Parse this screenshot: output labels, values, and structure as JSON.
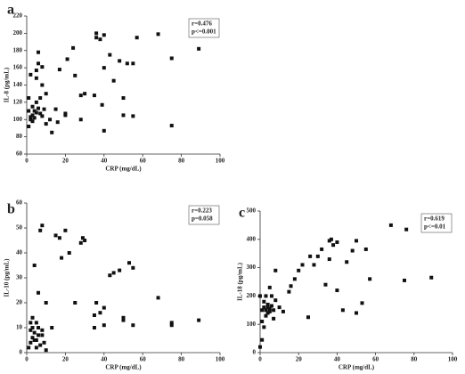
{
  "chart_data": [
    {
      "type": "scatter",
      "panel_label": "a",
      "x_label": "CRP (mg/dL)",
      "y_label": "IL-8 (pg/mL)",
      "annotations": [
        "r=0.476",
        "p<=0.001"
      ],
      "color": "#111111",
      "xlim": [
        0,
        100
      ],
      "xticks": [
        0,
        20,
        40,
        60,
        80,
        100
      ],
      "ylim": [
        60,
        220
      ],
      "yticks": [
        60,
        80,
        100,
        120,
        140,
        160,
        180,
        200,
        220
      ],
      "x": [
        89,
        75,
        75,
        68,
        57,
        55,
        55,
        52,
        50,
        50,
        48,
        45,
        43,
        40,
        40,
        40,
        39,
        38,
        36,
        36,
        35,
        30,
        28,
        28,
        25,
        24,
        21,
        20,
        20,
        17,
        16,
        15,
        13,
        12,
        10,
        10,
        8,
        8,
        7,
        6,
        6,
        5,
        5,
        5,
        4,
        3,
        2,
        2,
        1,
        1,
        1,
        3,
        4,
        5,
        6,
        7,
        8,
        9,
        3,
        2
      ],
      "values": [
        182,
        171,
        93,
        199,
        195,
        165,
        104,
        165,
        105,
        125,
        168,
        145,
        175,
        160,
        198,
        87,
        117,
        193,
        195,
        200,
        128,
        130,
        128,
        100,
        151,
        183,
        170,
        107,
        105,
        158,
        97,
        112,
        85,
        100,
        95,
        130,
        161,
        140,
        125,
        178,
        165,
        148,
        157,
        120,
        110,
        105,
        100,
        152,
        92,
        110,
        125,
        98,
        102,
        108,
        113,
        107,
        104,
        112,
        115,
        103
      ]
    },
    {
      "type": "scatter",
      "panel_label": "b",
      "x_label": "CRP (mg/dL)",
      "y_label": "IL-10 (pg/mL)",
      "annotations": [
        "r=0.223",
        "p=0.058"
      ],
      "color": "#111111",
      "xlim": [
        0,
        100
      ],
      "xticks": [
        0,
        20,
        40,
        60,
        80,
        100
      ],
      "ylim": [
        0,
        60
      ],
      "yticks": [
        0,
        10,
        20,
        30,
        40,
        50,
        60
      ],
      "x": [
        89,
        75,
        75,
        68,
        55,
        55,
        53,
        50,
        50,
        48,
        45,
        43,
        40,
        40,
        38,
        36,
        35,
        35,
        30,
        29,
        28,
        25,
        22,
        20,
        18,
        17,
        15,
        13,
        10,
        8,
        7,
        6,
        5,
        4,
        3,
        2,
        1,
        2,
        3,
        4,
        5,
        6,
        7,
        8,
        9,
        10,
        2,
        3,
        5,
        6,
        4,
        8
      ],
      "values": [
        13,
        11,
        12,
        22,
        34,
        11,
        36,
        14,
        13,
        33,
        32,
        31,
        11,
        18,
        16,
        20,
        10,
        15,
        45,
        46,
        44,
        20,
        40,
        49,
        38,
        46,
        47,
        10,
        20,
        51,
        49,
        24,
        12,
        35,
        6,
        9,
        2,
        12,
        14,
        8,
        5,
        7,
        3,
        9,
        4,
        1,
        4,
        10,
        2,
        10,
        5,
        7
      ]
    },
    {
      "type": "scatter",
      "panel_label": "c",
      "x_label": "CRP (mg/dL)",
      "y_label": "IL-18 (pg/mL)",
      "annotations": [
        "r=0.619",
        "p<=0.01"
      ],
      "color": "#111111",
      "xlim": [
        0,
        100
      ],
      "xticks": [
        0,
        20,
        40,
        60,
        80,
        100
      ],
      "ylim": [
        0,
        500
      ],
      "yticks": [
        0,
        100,
        200,
        300,
        400,
        500
      ],
      "x": [
        89,
        76,
        75,
        68,
        57,
        55,
        53,
        50,
        50,
        48,
        45,
        43,
        40,
        40,
        38,
        37,
        36,
        36,
        34,
        32,
        30,
        28,
        26,
        25,
        22,
        20,
        18,
        16,
        15,
        12,
        10,
        8,
        8,
        7,
        6,
        5,
        4,
        3,
        2,
        1,
        0,
        1,
        2,
        3,
        4,
        5,
        6,
        2,
        3,
        1,
        4,
        5,
        7,
        0
      ],
      "values": [
        265,
        435,
        255,
        450,
        260,
        365,
        175,
        140,
        395,
        360,
        320,
        150,
        390,
        220,
        380,
        400,
        395,
        330,
        240,
        365,
        340,
        310,
        340,
        125,
        310,
        290,
        260,
        235,
        215,
        145,
        160,
        290,
        185,
        120,
        200,
        230,
        170,
        150,
        90,
        45,
        20,
        150,
        160,
        130,
        140,
        155,
        165,
        180,
        200,
        110,
        160,
        145,
        150,
        200
      ]
    }
  ]
}
